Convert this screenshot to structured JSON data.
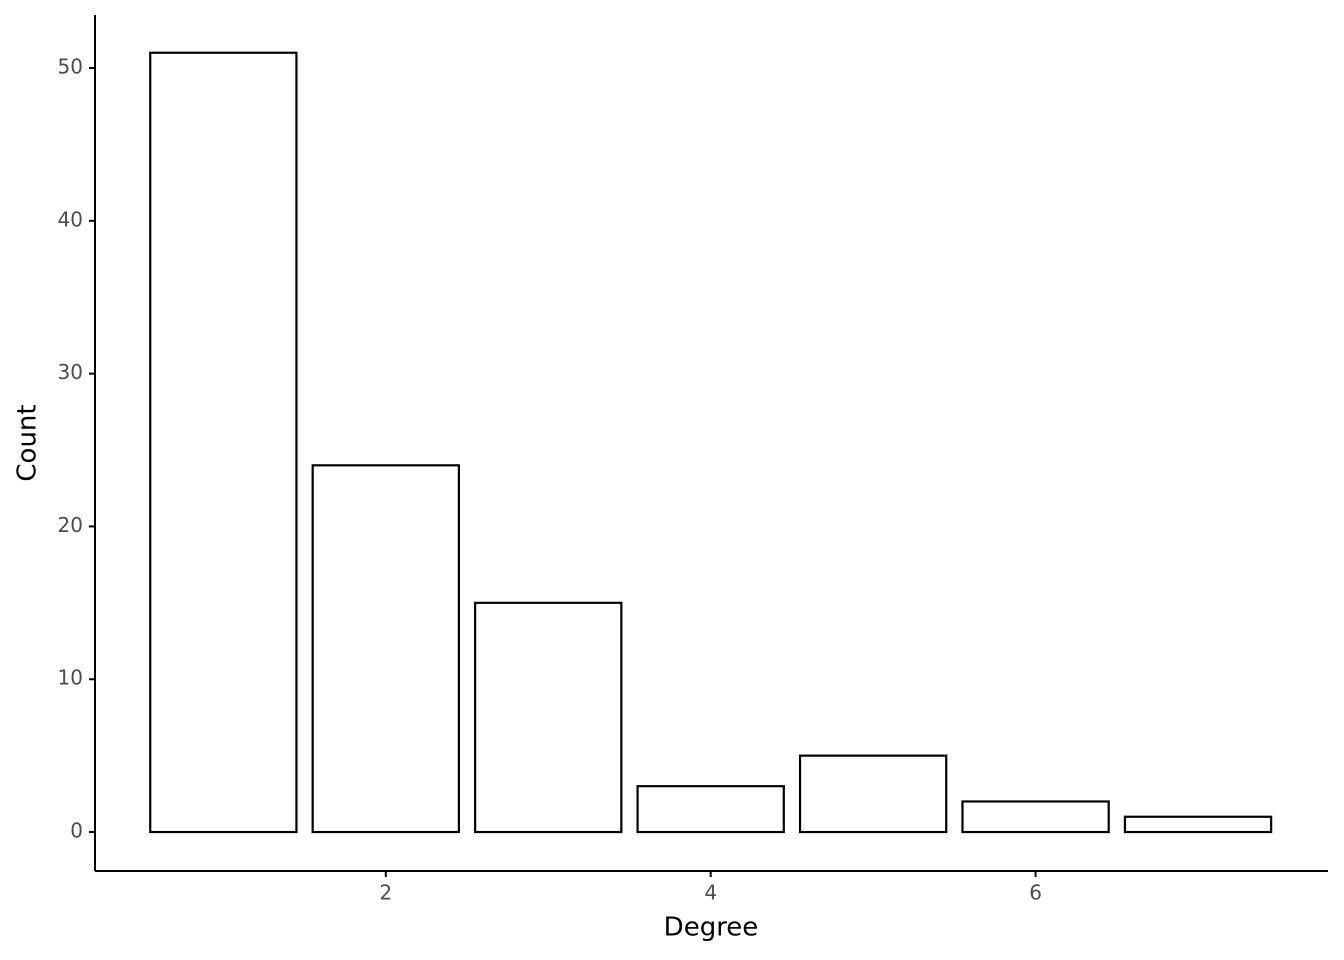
{
  "chart_data": {
    "type": "bar",
    "x_label": "Degree",
    "y_label": "Count",
    "x": [
      1,
      2,
      3,
      4,
      5,
      6,
      7
    ],
    "values": [
      51,
      24,
      15,
      3,
      5,
      2,
      1
    ],
    "color": "#ffffff",
    "edge_color": "#000000",
    "xlim": [
      0.21,
      7.8
    ],
    "xticks": [
      2,
      4,
      6
    ],
    "ylim": [
      -2.55,
      53.47
    ],
    "yticks": [
      0,
      10,
      20,
      30,
      40,
      50
    ],
    "grid": false
  }
}
